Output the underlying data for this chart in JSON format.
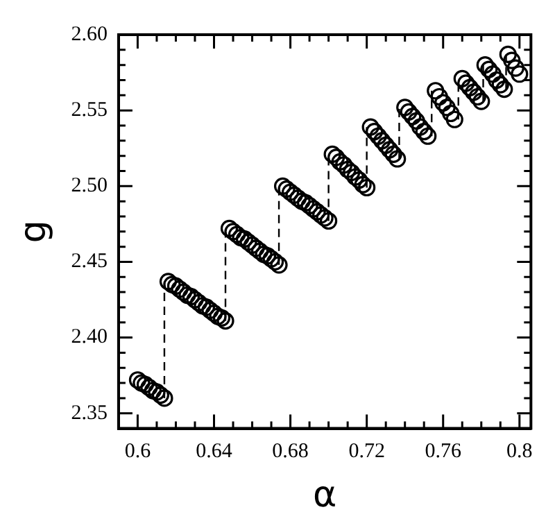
{
  "chart_data": {
    "type": "scatter",
    "xlabel": "α",
    "ylabel": "g",
    "xlim": [
      0.59,
      0.806
    ],
    "ylim": [
      2.34,
      2.6
    ],
    "xticks": [
      0.6,
      {
        "value": 0.61,
        "label": null
      },
      {
        "value": 0.62,
        "label": null
      },
      {
        "value": 0.63,
        "label": null
      },
      0.64,
      {
        "value": 0.65,
        "label": null
      },
      {
        "value": 0.66,
        "label": null
      },
      {
        "value": 0.67,
        "label": null
      },
      0.68,
      {
        "value": 0.69,
        "label": null
      },
      {
        "value": 0.7,
        "label": null
      },
      {
        "value": 0.71,
        "label": null
      },
      0.72,
      {
        "value": 0.73,
        "label": null
      },
      {
        "value": 0.74,
        "label": null
      },
      {
        "value": 0.75,
        "label": null
      },
      0.76,
      {
        "value": 0.77,
        "label": null
      },
      {
        "value": 0.78,
        "label": null
      },
      {
        "value": 0.79,
        "label": null
      },
      0.8
    ],
    "yticks": [
      2.35,
      {
        "value": 2.36,
        "label": null
      },
      {
        "value": 2.37,
        "label": null
      },
      {
        "value": 2.38,
        "label": null
      },
      {
        "value": 2.39,
        "label": null
      },
      {
        "value": 2.4,
        "label": "2.40"
      },
      {
        "value": 2.41,
        "label": null
      },
      {
        "value": 2.42,
        "label": null
      },
      {
        "value": 2.43,
        "label": null
      },
      {
        "value": 2.44,
        "label": null
      },
      2.45,
      {
        "value": 2.46,
        "label": null
      },
      {
        "value": 2.47,
        "label": null
      },
      {
        "value": 2.48,
        "label": null
      },
      {
        "value": 2.49,
        "label": null
      },
      {
        "value": 2.5,
        "label": "2.50"
      },
      {
        "value": 2.51,
        "label": null
      },
      {
        "value": 2.52,
        "label": null
      },
      {
        "value": 2.53,
        "label": null
      },
      {
        "value": 2.54,
        "label": null
      },
      2.55,
      {
        "value": 2.56,
        "label": null
      },
      {
        "value": 2.57,
        "label": null
      },
      {
        "value": 2.58,
        "label": null
      },
      {
        "value": 2.59,
        "label": null
      },
      {
        "value": 2.6,
        "label": "2.60"
      }
    ],
    "grid": false,
    "legend": false,
    "marker": "circle",
    "series": [
      {
        "color": "#000000",
        "x": [
          0.6,
          0.602,
          0.604,
          0.606,
          0.608,
          0.61,
          0.612,
          0.614,
          0.616,
          0.618,
          0.62,
          0.622,
          0.624,
          0.626,
          0.628,
          0.63,
          0.632,
          0.634,
          0.636,
          0.638,
          0.64,
          0.642,
          0.644,
          0.646,
          0.648,
          0.65,
          0.652,
          0.654,
          0.656,
          0.658,
          0.66,
          0.662,
          0.664,
          0.666,
          0.668,
          0.67,
          0.672,
          0.674,
          0.676,
          0.678,
          0.68,
          0.682,
          0.684,
          0.686,
          0.688,
          0.69,
          0.692,
          0.694,
          0.696,
          0.698,
          0.7,
          0.702,
          0.704,
          0.706,
          0.708,
          0.71,
          0.712,
          0.714,
          0.716,
          0.718,
          0.72,
          0.722,
          0.724,
          0.726,
          0.728,
          0.73,
          0.732,
          0.734,
          0.736,
          0.74,
          0.742,
          0.744,
          0.746,
          0.748,
          0.75,
          0.752,
          0.756,
          0.758,
          0.76,
          0.762,
          0.764,
          0.766,
          0.77,
          0.772,
          0.774,
          0.776,
          0.778,
          0.78,
          0.782,
          0.784,
          0.786,
          0.788,
          0.79,
          0.792,
          0.794,
          0.796,
          0.798,
          0.8
        ],
        "values": [
          2.372,
          2.37,
          2.369,
          2.367,
          2.365,
          2.364,
          2.362,
          2.36,
          2.437,
          2.435,
          2.434,
          2.432,
          2.43,
          2.428,
          2.427,
          2.425,
          2.423,
          2.421,
          2.42,
          2.418,
          2.416,
          2.414,
          2.413,
          2.411,
          2.472,
          2.47,
          2.468,
          2.466,
          2.465,
          2.463,
          2.461,
          2.459,
          2.457,
          2.455,
          2.454,
          2.452,
          2.45,
          2.448,
          2.5,
          2.498,
          2.496,
          2.494,
          2.492,
          2.49,
          2.489,
          2.487,
          2.485,
          2.483,
          2.481,
          2.479,
          2.477,
          2.521,
          2.519,
          2.516,
          2.514,
          2.511,
          2.509,
          2.506,
          2.504,
          2.501,
          2.499,
          2.539,
          2.536,
          2.533,
          2.53,
          2.527,
          2.524,
          2.521,
          2.518,
          2.552,
          2.549,
          2.546,
          2.543,
          2.539,
          2.536,
          2.533,
          2.563,
          2.559,
          2.555,
          2.552,
          2.548,
          2.544,
          2.571,
          2.568,
          2.565,
          2.562,
          2.559,
          2.556,
          2.58,
          2.577,
          2.574,
          2.57,
          2.567,
          2.564,
          2.587,
          2.583,
          2.578,
          2.574
        ]
      },
      {
        "type": "line",
        "marker": "none",
        "line_style": "dashed",
        "color": "#000000",
        "x": [
          0.614,
          0.614
        ],
        "values": [
          2.36,
          2.437
        ]
      },
      {
        "type": "line",
        "marker": "none",
        "line_style": "dashed",
        "color": "#000000",
        "x": [
          0.646,
          0.646
        ],
        "values": [
          2.411,
          2.472
        ]
      },
      {
        "type": "line",
        "marker": "none",
        "line_style": "dashed",
        "color": "#000000",
        "x": [
          0.674,
          0.674
        ],
        "values": [
          2.448,
          2.5
        ]
      },
      {
        "type": "line",
        "marker": "none",
        "line_style": "dashed",
        "color": "#000000",
        "x": [
          0.7,
          0.7
        ],
        "values": [
          2.477,
          2.521
        ]
      },
      {
        "type": "line",
        "marker": "none",
        "line_style": "dashed",
        "color": "#000000",
        "x": [
          0.72,
          0.72
        ],
        "values": [
          2.499,
          2.539
        ]
      },
      {
        "type": "line",
        "marker": "none",
        "line_style": "dashed",
        "color": "#000000",
        "x": [
          0.737,
          0.737
        ],
        "values": [
          2.518,
          2.552
        ]
      },
      {
        "type": "line",
        "marker": "none",
        "line_style": "dashed",
        "color": "#000000",
        "x": [
          0.754,
          0.754
        ],
        "values": [
          2.533,
          2.563
        ]
      },
      {
        "type": "line",
        "marker": "none",
        "line_style": "dashed",
        "color": "#000000",
        "x": [
          0.768,
          0.768
        ],
        "values": [
          2.544,
          2.571
        ]
      },
      {
        "type": "line",
        "marker": "none",
        "line_style": "dashed",
        "color": "#000000",
        "x": [
          0.781,
          0.781
        ],
        "values": [
          2.556,
          2.58
        ]
      },
      {
        "type": "line",
        "marker": "none",
        "line_style": "dashed",
        "color": "#000000",
        "x": [
          0.793,
          0.793
        ],
        "values": [
          2.564,
          2.587
        ]
      }
    ]
  }
}
